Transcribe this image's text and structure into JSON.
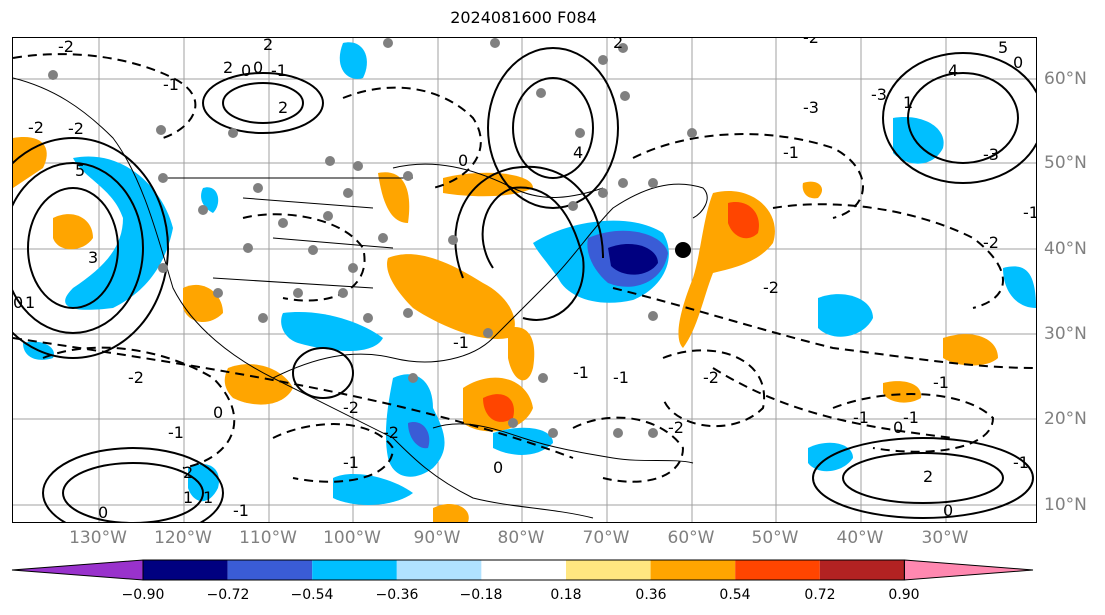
{
  "title": "2024081600 F084",
  "lat_labels": [
    "60°N",
    "50°N",
    "40°N",
    "30°N",
    "20°N",
    "10°N"
  ],
  "lon_labels": [
    "130°W",
    "120°W",
    "110°W",
    "100°W",
    "90°W",
    "80°W",
    "70°W",
    "60°W",
    "50°W",
    "40°W",
    "30°W"
  ],
  "colorbar": {
    "ticks": [
      "−0.90",
      "−0.72",
      "−0.54",
      "−0.36",
      "−0.18",
      "0.18",
      "0.36",
      "0.54",
      "0.72",
      "0.90"
    ],
    "colors": [
      "#9932cc",
      "#000080",
      "#3a5cd6",
      "#00bfff",
      "#b0e2ff",
      "#ffffff",
      "#ffe680",
      "#ffa500",
      "#ff4500",
      "#b22222",
      "#ff88b0"
    ]
  },
  "contour_labels": [
    "2",
    "-2",
    "0",
    "-1",
    "2",
    "-1",
    "-2",
    "5",
    "-3",
    "2",
    "-3",
    "4",
    "4",
    "5",
    "-3",
    "-2",
    "3",
    "1",
    "1",
    "-1",
    "0",
    "-2",
    "-1",
    "-2",
    "-1",
    "-1",
    "0",
    "-1",
    "2",
    "-2",
    "1",
    "2",
    "0",
    "-2",
    "-1",
    "-1",
    "0",
    "-2",
    "2",
    "0",
    "0",
    "1",
    "-2",
    "-1",
    "-2",
    "-1",
    "-2",
    "-1",
    "0",
    "0",
    "0",
    "-1",
    "-1"
  ],
  "legend": {
    "colors": {
      "blue": "#00bfff",
      "navy": "#000080",
      "midblue": "#3a5cd6",
      "orange": "#ffa500",
      "red": "#ff4500",
      "darkred": "#b22222",
      "station": "#808080",
      "marker": "#000000"
    }
  }
}
